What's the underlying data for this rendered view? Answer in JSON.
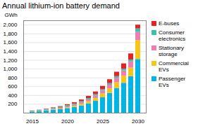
{
  "chart_data": {
    "type": "bar",
    "title": "Annual lithium-ion battery demand",
    "ylabel": "GWh",
    "categories": [
      "2015",
      null,
      null,
      null,
      null,
      "2020",
      null,
      null,
      null,
      null,
      "2025",
      null,
      null,
      null,
      null,
      "2030"
    ],
    "series": [
      {
        "name": "Passenger\nEVs",
        "color": "#00b4e6",
        "values": [
          25,
          35,
          50,
          65,
          80,
          105,
          130,
          165,
          210,
          270,
          350,
          450,
          560,
          680,
          830,
          1220
        ]
      },
      {
        "name": "Commercial\nEVs",
        "color": "#f5c518",
        "values": [
          3,
          5,
          8,
          12,
          16,
          20,
          28,
          38,
          50,
          65,
          85,
          105,
          135,
          165,
          195,
          430
        ]
      },
      {
        "name": "Stationary\nstorage",
        "color": "#f07db0",
        "values": [
          4,
          6,
          8,
          12,
          16,
          20,
          26,
          33,
          43,
          55,
          68,
          82,
          98,
          115,
          140,
          185
        ]
      },
      {
        "name": "Consumer\nelectronics",
        "color": "#3dbfb0",
        "values": [
          14,
          16,
          18,
          20,
          22,
          24,
          26,
          28,
          30,
          32,
          34,
          36,
          38,
          40,
          42,
          80
        ]
      },
      {
        "name": "E-buses",
        "color": "#e82020",
        "values": [
          4,
          6,
          9,
          12,
          16,
          22,
          28,
          36,
          48,
          60,
          73,
          87,
          100,
          120,
          140,
          85
        ]
      }
    ],
    "stacked": true,
    "ylim": [
      0,
      2100
    ],
    "yticks": [
      200,
      400,
      600,
      800,
      {
        "value": 1000,
        "label": "1,000"
      },
      {
        "value": 1200,
        "label": "1,200"
      },
      {
        "value": 1400,
        "label": "1,400"
      },
      {
        "value": 1600,
        "label": "1,600"
      },
      {
        "value": 1800,
        "label": "1,800"
      },
      {
        "value": 2000,
        "label": "2,000"
      }
    ],
    "grid": true,
    "legend": "upper right"
  }
}
